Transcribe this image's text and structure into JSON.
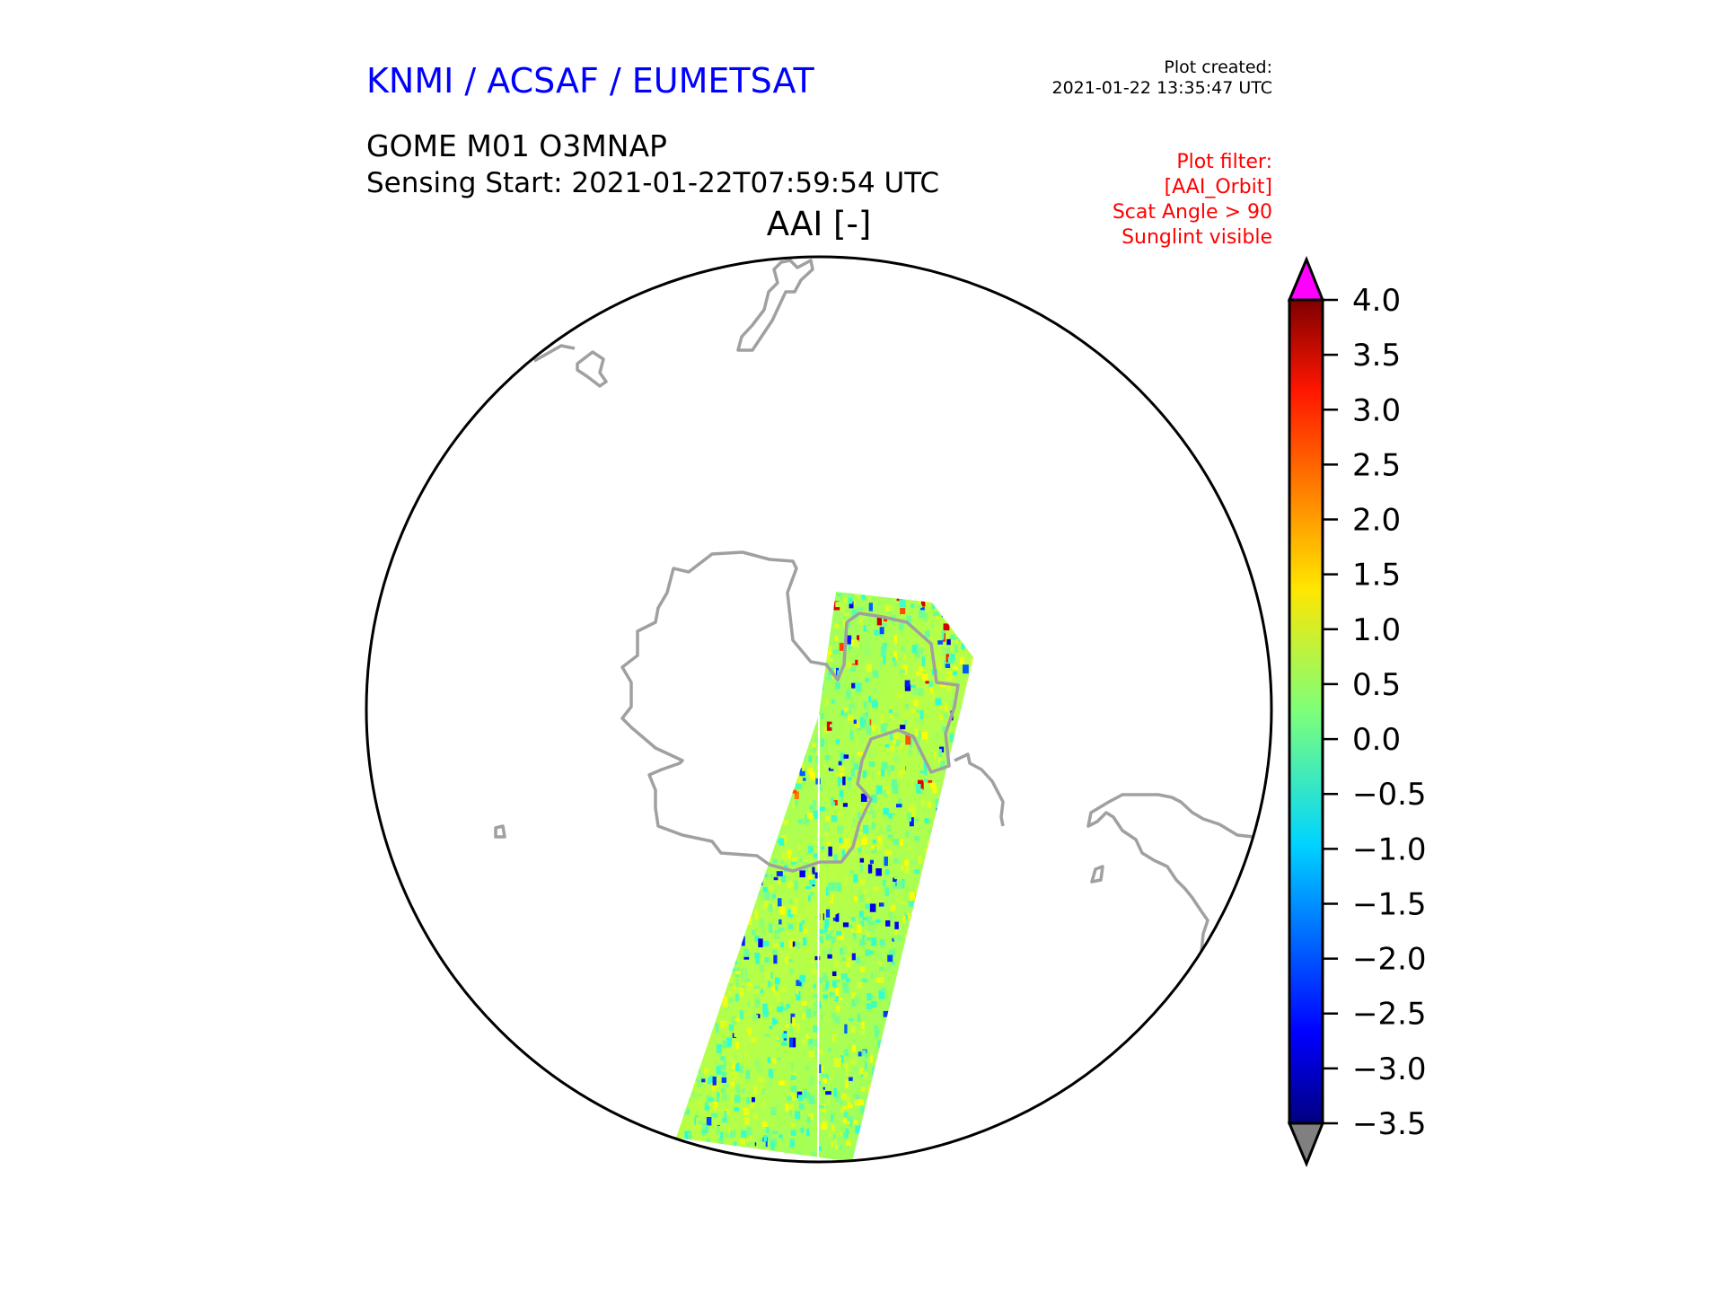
{
  "header": {
    "organisation": "KNMI / ACSAF / EUMETSAT",
    "plot_created_label": "Plot created:",
    "plot_created_value": "2021-01-22 13:35:47 UTC",
    "product": "GOME M01 O3MNAP",
    "sensing_start": "Sensing Start: 2021-01-22T07:59:54 UTC",
    "filter_lines": [
      "Plot filter:",
      "[AAI_Orbit]",
      "Scat Angle > 90",
      "Sunglint visible"
    ]
  },
  "chart_data": {
    "type": "heatmap",
    "title": "AAI [-]",
    "projection": "south polar stereographic (circular)",
    "colorbar": {
      "min": -3.5,
      "max": 4.0,
      "ticks": [
        "4.0",
        "3.5",
        "3.0",
        "2.5",
        "2.0",
        "1.5",
        "1.0",
        "0.5",
        "0.0",
        "−0.5",
        "−1.0",
        "−1.5",
        "−2.0",
        "−2.5",
        "−3.0",
        "−3.5"
      ],
      "colormap": "jet",
      "over_color": "#ff00ff",
      "under_color": "#808080",
      "extend": "both"
    },
    "swath_typical_range": [
      -1.0,
      1.5
    ],
    "coastline_color": "#a0a0a0"
  }
}
